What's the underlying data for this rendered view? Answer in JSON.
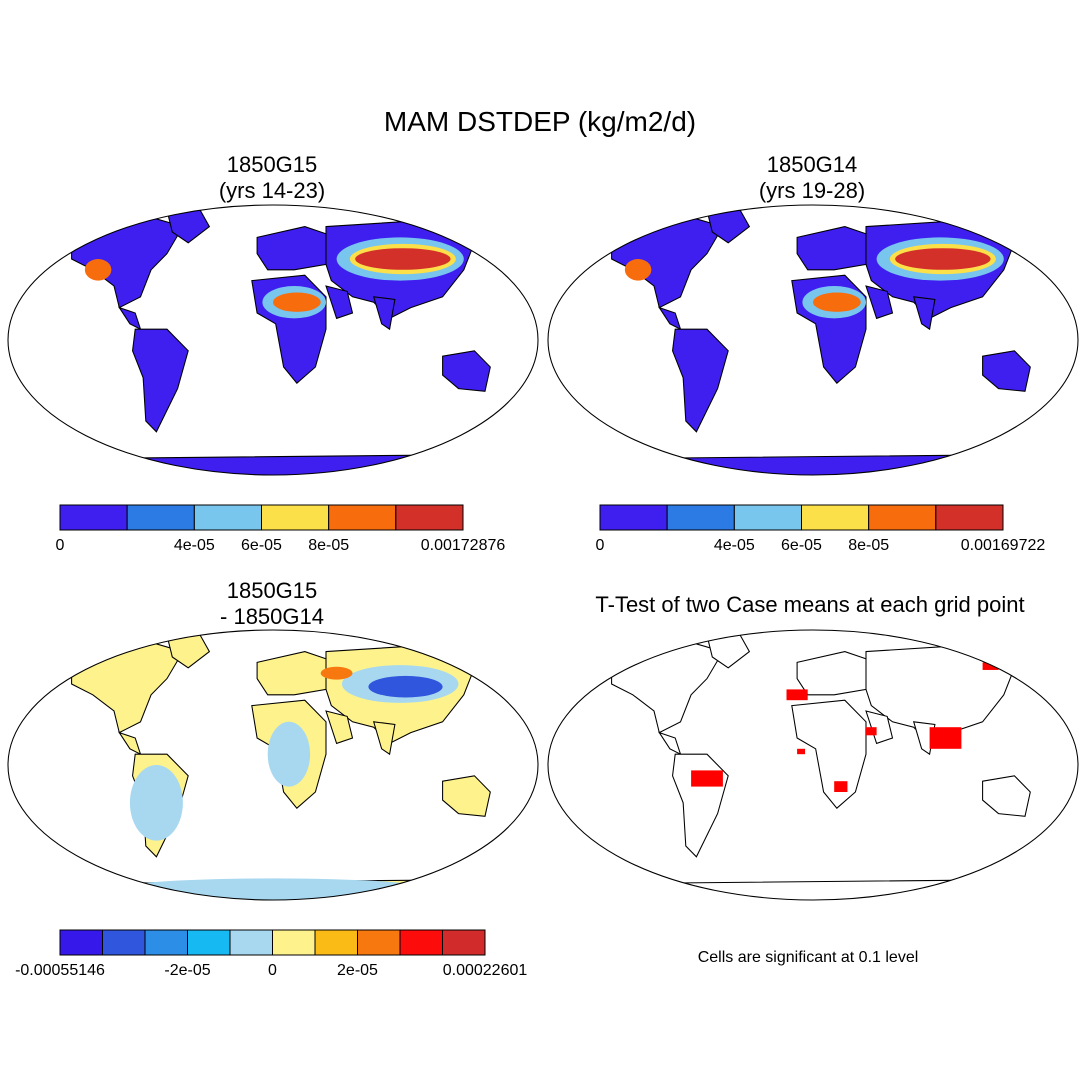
{
  "main_title": "MAM DSTDEP (kg/m2/d)",
  "panels": [
    {
      "id": "g15",
      "title_lines": [
        "1850G15",
        "(yrs 14-23)"
      ],
      "colorbar": {
        "colors": [
          "#3e1ff0",
          "#2c7be5",
          "#78c6ee",
          "#fbe04a",
          "#f76d0e",
          "#d3302a"
        ],
        "labels": [
          "0",
          "4e-05",
          "6e-05",
          "8e-05",
          "0.00172876"
        ]
      }
    },
    {
      "id": "g14",
      "title_lines": [
        "1850G14",
        "(yrs 19-28)"
      ],
      "colorbar": {
        "colors": [
          "#3e1ff0",
          "#2c7be5",
          "#78c6ee",
          "#fbe04a",
          "#f76d0e",
          "#d3302a"
        ],
        "labels": [
          "0",
          "4e-05",
          "6e-05",
          "8e-05",
          "0.00169722"
        ]
      }
    },
    {
      "id": "diff",
      "title_lines": [
        "1850G15",
        "- 1850G14"
      ],
      "colorbar": {
        "colors": [
          "#3718ea",
          "#2f56dc",
          "#2c8ee6",
          "#17b9f2",
          "#a8d8f0",
          "#fdf28c",
          "#fbbb16",
          "#f6780f",
          "#fc0d0b",
          "#d22b2b"
        ],
        "labels": [
          "-0.00055146",
          "-2e-05",
          "0",
          "2e-05",
          "0.00022601"
        ]
      }
    },
    {
      "id": "ttest",
      "title_lines": [
        "T-Test of two Case means at each grid point"
      ],
      "note": "Cells are significant at 0.1 level"
    }
  ],
  "colors": {
    "land_low": "#3e1ff0",
    "ocean": "#ffffff",
    "significant": "#ff0000",
    "coastline": "#000000"
  }
}
